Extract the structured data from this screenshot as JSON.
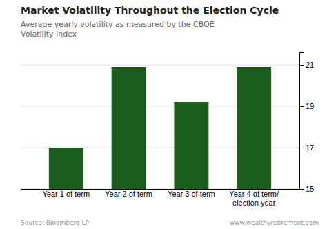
{
  "chart_data": {
    "type": "bar",
    "title": "Market Volatility Throughout the Election Cycle",
    "subtitle": "Average yearly volatility as measured by the CBOE\nVolatility Index",
    "categories": [
      "Year 1 of term",
      "Year 2 of term",
      "Year 3 of term",
      "Year 4 of term/\nelection year"
    ],
    "values": [
      17.0,
      20.9,
      19.2,
      20.9
    ],
    "color": "#1a5c1a",
    "ylim": [
      15,
      21.6
    ],
    "yticks": [
      15,
      17,
      19,
      21
    ],
    "grid": true,
    "annotations": [
      "Source: Bloomberg LP",
      "www.wealthyretirement.com"
    ]
  }
}
